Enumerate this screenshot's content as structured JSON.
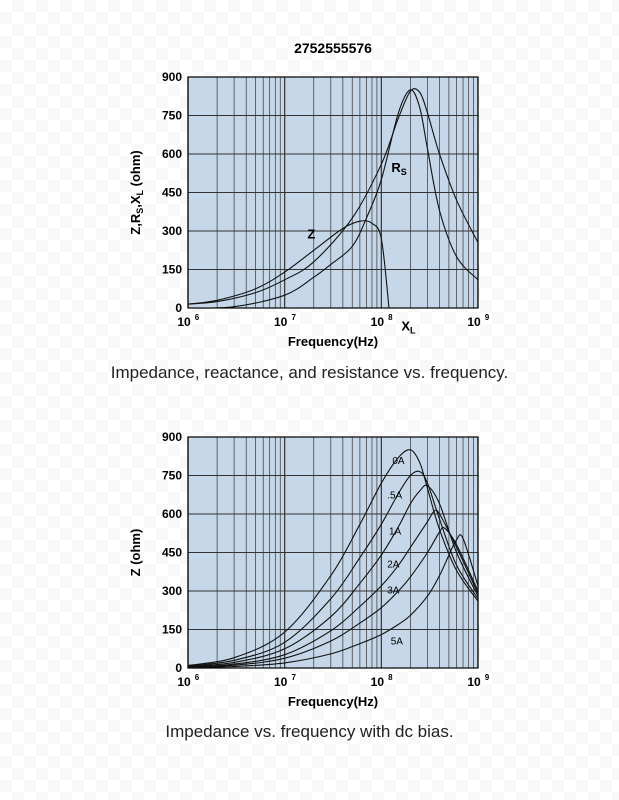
{
  "captions": {
    "chart1": "Impedance, reactance, and resistance vs. frequency.",
    "chart2": "Impedance vs. frequency with dc bias."
  },
  "colors": {
    "plot_bg": "#c5d7e8",
    "grid": "#333333",
    "curve": "#111111"
  },
  "chart_data": [
    {
      "type": "line",
      "title": "2752555576",
      "xlabel": "Frequency(Hz)",
      "ylabel": "Z,R_S,X_L (ohm)",
      "x_scale": "log",
      "xlim": [
        1000000,
        1000000000
      ],
      "ylim": [
        0,
        900
      ],
      "yticks": [
        0,
        150,
        300,
        450,
        600,
        750,
        900
      ],
      "xticks": [
        {
          "value": 1000000,
          "base": "10",
          "exp": "6"
        },
        {
          "value": 10000000,
          "base": "10",
          "exp": "7"
        },
        {
          "value": 100000000,
          "base": "10",
          "exp": "8"
        },
        {
          "value": 1000000000,
          "base": "10",
          "exp": "9"
        }
      ],
      "grid": true,
      "series": [
        {
          "name": "Z",
          "x": [
            1000000,
            2000000,
            5000000,
            10000000,
            20000000,
            50000000,
            100000000,
            150000000,
            200000000,
            250000000,
            300000000,
            400000000,
            600000000,
            1000000000
          ],
          "y": [
            15,
            25,
            60,
            110,
            180,
            350,
            560,
            740,
            845,
            840,
            760,
            600,
            420,
            255
          ]
        },
        {
          "name": "R_S",
          "label_main": "R",
          "label_sub": "S",
          "x": [
            1000000,
            3000000,
            10000000,
            20000000,
            30000000,
            50000000,
            70000000,
            100000000,
            150000000,
            200000000,
            250000000,
            300000000,
            400000000,
            600000000,
            1000000000
          ],
          "y": [
            0,
            5,
            50,
            120,
            170,
            240,
            350,
            500,
            760,
            850,
            780,
            620,
            380,
            200,
            110
          ]
        },
        {
          "name": "X_L",
          "label_main": "X",
          "label_sub": "L",
          "x": [
            1000000,
            2000000,
            5000000,
            10000000,
            20000000,
            40000000,
            60000000,
            80000000,
            100000000,
            120000000
          ],
          "y": [
            15,
            30,
            75,
            140,
            225,
            310,
            338,
            330,
            270,
            0
          ]
        }
      ]
    },
    {
      "type": "line",
      "xlabel": "Frequency(Hz)",
      "ylabel": "Z (ohm)",
      "x_scale": "log",
      "xlim": [
        1000000,
        1000000000
      ],
      "ylim": [
        0,
        900
      ],
      "yticks": [
        0,
        150,
        300,
        450,
        600,
        750,
        900
      ],
      "xticks": [
        {
          "value": 1000000,
          "base": "10",
          "exp": "6"
        },
        {
          "value": 10000000,
          "base": "10",
          "exp": "7"
        },
        {
          "value": 100000000,
          "base": "10",
          "exp": "8"
        },
        {
          "value": 1000000000,
          "base": "10",
          "exp": "9"
        }
      ],
      "grid": true,
      "series": [
        {
          "name": "0A",
          "x": [
            1000000,
            3000000,
            10000000,
            30000000,
            60000000,
            100000000,
            150000000,
            200000000,
            250000000,
            300000000,
            400000000,
            600000000,
            1000000000
          ],
          "y": [
            10,
            40,
            140,
            360,
            560,
            720,
            820,
            850,
            800,
            700,
            540,
            380,
            260
          ]
        },
        {
          "name": ".5A",
          "x": [
            1000000,
            3000000,
            10000000,
            30000000,
            60000000,
            100000000,
            150000000,
            200000000,
            250000000,
            300000000,
            400000000,
            600000000,
            1000000000
          ],
          "y": [
            8,
            30,
            100,
            270,
            430,
            560,
            680,
            750,
            765,
            720,
            580,
            400,
            270
          ]
        },
        {
          "name": "1A",
          "x": [
            1000000,
            3000000,
            10000000,
            30000000,
            60000000,
            100000000,
            150000000,
            200000000,
            250000000,
            300000000,
            400000000,
            600000000,
            1000000000
          ],
          "y": [
            6,
            22,
            75,
            200,
            330,
            440,
            550,
            640,
            690,
            710,
            640,
            450,
            280
          ]
        },
        {
          "name": "2A",
          "x": [
            1000000,
            3000000,
            10000000,
            30000000,
            60000000,
            100000000,
            150000000,
            200000000,
            300000000,
            350000000,
            400000000,
            600000000,
            1000000000
          ],
          "y": [
            4,
            15,
            52,
            145,
            240,
            320,
            400,
            470,
            570,
            610,
            600,
            470,
            290
          ]
        },
        {
          "name": "3A",
          "x": [
            1000000,
            3000000,
            10000000,
            30000000,
            60000000,
            100000000,
            150000000,
            200000000,
            300000000,
            400000000,
            450000000,
            600000000,
            1000000000
          ],
          "y": [
            3,
            11,
            38,
            105,
            175,
            235,
            300,
            355,
            450,
            530,
            545,
            480,
            300
          ]
        },
        {
          "name": "5A",
          "x": [
            1000000,
            3000000,
            10000000,
            30000000,
            60000000,
            100000000,
            150000000,
            200000000,
            300000000,
            400000000,
            500000000,
            600000000,
            700000000,
            1000000000
          ],
          "y": [
            2,
            6,
            20,
            55,
            95,
            130,
            170,
            205,
            280,
            360,
            440,
            500,
            505,
            320
          ]
        }
      ]
    }
  ]
}
